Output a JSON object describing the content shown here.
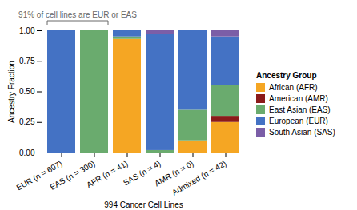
{
  "chart_data": {
    "type": "bar",
    "stacked": true,
    "xlabel": "994 Cancer Cell Lines",
    "ylabel": "Ancestry Fraction",
    "categories": [
      "EUR (n = 607)",
      "EAS (n = 300)",
      "AFR (n = 41)",
      "SAS (n = 4)",
      "AMR (n = 0)",
      "Admixed (n = 42)"
    ],
    "series": [
      {
        "name": "African (AFR)",
        "color": "#F5A623",
        "values": [
          null,
          null,
          0.93,
          null,
          0.1,
          0.25
        ]
      },
      {
        "name": "American (AMR)",
        "color": "#8B1A1A",
        "values": [
          null,
          null,
          null,
          null,
          null,
          0.05
        ]
      },
      {
        "name": "East Asian (EAS)",
        "color": "#6AAB6E",
        "values": [
          null,
          1.0,
          0.02,
          0.02,
          0.25,
          0.25
        ]
      },
      {
        "name": "European (EUR)",
        "color": "#4472C4",
        "values": [
          1.0,
          null,
          0.05,
          0.95,
          0.65,
          0.4
        ]
      },
      {
        "name": "South Asian (SAS)",
        "color": "#7B5EA7",
        "values": [
          null,
          null,
          null,
          0.03,
          null,
          0.05
        ]
      }
    ],
    "ylim": [
      0,
      1
    ],
    "yticks": [
      {
        "value": 0,
        "label": "0.00"
      },
      0.25,
      {
        "value": 0.5,
        "label": "0.50"
      },
      0.75,
      {
        "value": 1,
        "label": "1.00"
      }
    ],
    "grid": false,
    "legend": "right",
    "legend_title": "Ancestry Group",
    "annotations": [
      {
        "text": "91% of cell lines are EUR or EAS",
        "from": "EUR (n = 607)",
        "to": "EAS (n = 300)"
      }
    ]
  }
}
